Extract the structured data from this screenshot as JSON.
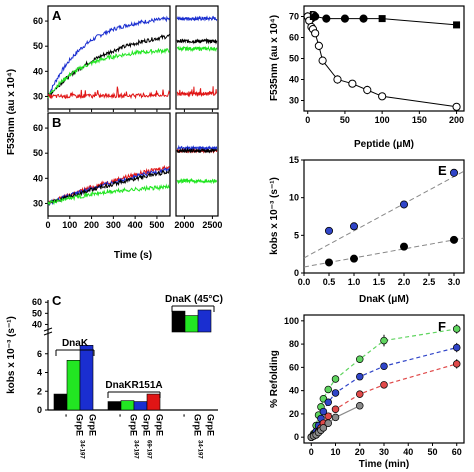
{
  "colors": {
    "black": "#000000",
    "green": "#22e622",
    "blue": "#1a2ed0",
    "red": "#e01515",
    "grey": "#8a8a8a",
    "rb_blue": "#3045c8",
    "rb_green": "#5fd45f",
    "rb_red": "#e04a4a"
  },
  "shared": {
    "ylabel_left": "F535nm (au x 10⁴)",
    "xlabel_AB": "Time (s)"
  },
  "chart_data": [
    {
      "id": "A",
      "letter": "A",
      "type": "line",
      "xlim": [
        0,
        2600
      ],
      "axis_break": [
        560,
        1850
      ],
      "ylim": [
        25,
        66
      ],
      "xticks": [
        0,
        100,
        200,
        300,
        400,
        500,
        2000,
        2500
      ],
      "yticks": [
        30,
        40,
        50,
        60
      ],
      "series": [
        {
          "color": "blue",
          "kinetic": {
            "y0": 30,
            "ymax": 62,
            "k": 0.006
          },
          "late": 61
        },
        {
          "color": "black",
          "kinetic": {
            "y0": 30,
            "ymax": 58,
            "k": 0.0035
          },
          "late": 52
        },
        {
          "color": "green",
          "kinetic": {
            "y0": 30,
            "ymax": 49,
            "k": 0.006
          },
          "late": 49
        },
        {
          "color": "red",
          "kinetic": {
            "y0": 30,
            "ymax": 31,
            "k": 0.001
          },
          "late": 31
        }
      ]
    },
    {
      "id": "B",
      "letter": "B",
      "type": "line",
      "xlim": [
        0,
        2600
      ],
      "axis_break": [
        560,
        1850
      ],
      "ylim": [
        25,
        66
      ],
      "xticks": [
        0,
        100,
        200,
        300,
        400,
        500,
        2000,
        2500
      ],
      "yticks": [
        30,
        40,
        50,
        60
      ],
      "xlabel": "Time (s)",
      "series": [
        {
          "color": "red",
          "kinetic": {
            "y0": 30,
            "ymax": 60,
            "k": 0.0012
          },
          "late": 51
        },
        {
          "color": "blue",
          "kinetic": {
            "y0": 30,
            "ymax": 60,
            "k": 0.0011
          },
          "late": 52
        },
        {
          "color": "black",
          "kinetic": {
            "y0": 30,
            "ymax": 60,
            "k": 0.001
          },
          "late": 51
        },
        {
          "color": "green",
          "kinetic": {
            "y0": 30,
            "ymax": 38,
            "k": 0.003
          },
          "late": 39
        }
      ]
    },
    {
      "id": "C",
      "letter": "C",
      "type": "bar",
      "ylabel": "kobs x 10⁻³ (s⁻¹)",
      "yticks_lower": [
        0,
        2,
        4,
        6
      ],
      "yticks_upper": [
        40,
        50,
        60
      ],
      "groups": [
        {
          "label": "DnaK",
          "bars": [
            1.7,
            5.3,
            6.9
          ]
        },
        {
          "label": "DnaKR151A",
          "bars": [
            0.9,
            1.0,
            0.9,
            1.7
          ]
        },
        {
          "label": "DnaK (45°C)",
          "bars": [
            52,
            48,
            53
          ]
        }
      ],
      "bar_colors_g1": [
        "black",
        "green",
        "blue"
      ],
      "bar_colors_g2": [
        "black",
        "green",
        "blue",
        "red"
      ],
      "bar_colors_g3": [
        "black",
        "green",
        "blue"
      ],
      "xticklabels": [
        "-",
        "GrpE",
        "GrpE",
        "-",
        "GrpE",
        "GrpE",
        "GrpE",
        "-",
        "GrpE",
        "GrpE"
      ],
      "xtick_sub": [
        "",
        "",
        "34-197",
        "",
        "",
        "34-197",
        "69-197",
        "",
        "",
        "34-197"
      ]
    },
    {
      "id": "D",
      "letter": "D",
      "type": "scatter",
      "xlabel": "Peptide (μM)",
      "ylabel": "F535nm (au x 10⁴)",
      "xlim": [
        -5,
        210
      ],
      "ylim": [
        25,
        75
      ],
      "xticks": [
        0,
        50,
        100,
        150,
        200
      ],
      "yticks": [
        30,
        40,
        50,
        60,
        70
      ],
      "series": [
        {
          "marker": "filled",
          "x": [
            0,
            5,
            10,
            25,
            50,
            75,
            100,
            200
          ],
          "y": [
            70,
            69,
            70,
            69,
            69,
            69,
            69,
            66
          ],
          "err": [
            2,
            1,
            2,
            1,
            1,
            1,
            1,
            1
          ]
        },
        {
          "marker": "open",
          "x": [
            0,
            2,
            5,
            7,
            10,
            15,
            20,
            40,
            60,
            80,
            100,
            200
          ],
          "y": [
            70,
            68,
            65,
            64,
            62,
            56,
            49,
            40,
            38,
            35,
            32,
            27
          ],
          "err": [
            1,
            1,
            1,
            1,
            1,
            2,
            2,
            2,
            1,
            2,
            1,
            1
          ]
        }
      ]
    },
    {
      "id": "E",
      "letter": "E",
      "type": "scatter",
      "xlabel": "DnaK (μM)",
      "ylabel": "kobs x 10⁻³ (s⁻¹)",
      "xlim": [
        0,
        3.2
      ],
      "ylim": [
        0,
        15
      ],
      "xticks": [
        0.0,
        0.5,
        1.0,
        1.5,
        2.0,
        2.5,
        3.0
      ],
      "yticks": [
        0,
        5,
        10,
        15
      ],
      "series": [
        {
          "color": "rb_blue",
          "x": [
            0.5,
            1.0,
            2.0,
            3.0
          ],
          "y": [
            5.6,
            6.2,
            9.1,
            13.3
          ],
          "err": [
            0.3,
            0.3,
            0.4,
            0.5
          ],
          "fit": [
            2.0,
            3.6
          ]
        },
        {
          "color": "black",
          "x": [
            0.5,
            1.0,
            2.0,
            3.0
          ],
          "y": [
            1.4,
            1.9,
            3.5,
            4.4
          ],
          "err": [
            0.2,
            0.2,
            0.2,
            0.3
          ],
          "fit": [
            0.8,
            1.2
          ]
        }
      ]
    },
    {
      "id": "F",
      "letter": "F",
      "type": "line",
      "xlabel": "Time (min)",
      "ylabel": "% Refolding",
      "xlim": [
        -3,
        63
      ],
      "ylim": [
        -5,
        105
      ],
      "xticks": [
        0,
        10,
        20,
        30,
        40,
        50,
        60
      ],
      "yticks": [
        0,
        20,
        40,
        60,
        80,
        100
      ],
      "series": [
        {
          "color": "rb_green",
          "x": [
            0,
            1,
            2,
            3,
            4,
            5,
            7,
            10,
            20,
            30,
            60
          ],
          "y": [
            0,
            3,
            10,
            19,
            26,
            33,
            41,
            50,
            67,
            83,
            93
          ],
          "err": [
            1,
            1,
            2,
            2,
            2,
            2,
            2,
            3,
            3,
            5,
            4
          ]
        },
        {
          "color": "rb_blue",
          "x": [
            0,
            1,
            2,
            3,
            4,
            5,
            7,
            10,
            20,
            30,
            60
          ],
          "y": [
            0,
            2,
            5,
            10,
            16,
            22,
            30,
            38,
            52,
            61,
            77
          ],
          "err": [
            1,
            1,
            1,
            2,
            2,
            2,
            2,
            3,
            3,
            3,
            4
          ]
        },
        {
          "color": "rb_red",
          "x": [
            0,
            1,
            2,
            3,
            4,
            5,
            7,
            10,
            20,
            30,
            60
          ],
          "y": [
            0,
            1,
            2,
            5,
            8,
            12,
            18,
            24,
            37,
            45,
            63
          ],
          "err": [
            1,
            1,
            1,
            1,
            1,
            2,
            2,
            2,
            3,
            3,
            4
          ]
        },
        {
          "color": "grey",
          "x": [
            0,
            1,
            2,
            3,
            4,
            5,
            7,
            10,
            20
          ],
          "y": [
            0,
            1,
            2,
            4,
            6,
            8,
            12,
            17,
            27
          ],
          "err": [
            0,
            0,
            0,
            0,
            0,
            0,
            0,
            0,
            0
          ]
        }
      ]
    }
  ]
}
